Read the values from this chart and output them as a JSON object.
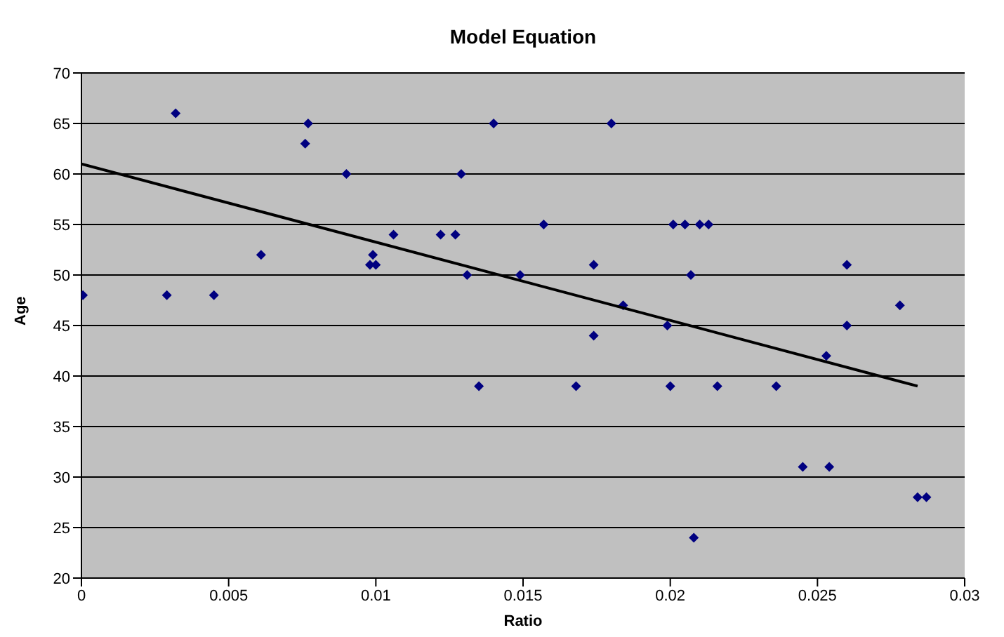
{
  "chart_data": {
    "type": "scatter",
    "title": "Model Equation",
    "xlabel": "Ratio",
    "ylabel": "Age",
    "series": [
      {
        "color": "#000080",
        "marker": "diamond",
        "x": [
          5e-05,
          0.0029,
          0.0032,
          0.0045,
          0.0061,
          0.0076,
          0.0077,
          0.009,
          0.0098,
          0.0099,
          0.01,
          0.0106,
          0.0122,
          0.0127,
          0.0129,
          0.0131,
          0.0135,
          0.014,
          0.0149,
          0.0157,
          0.0168,
          0.0174,
          0.0174,
          0.018,
          0.0184,
          0.0199,
          0.02,
          0.0201,
          0.0205,
          0.0207,
          0.0208,
          0.021,
          0.0213,
          0.0216,
          0.0236,
          0.0245,
          0.0253,
          0.0254,
          0.026,
          0.026,
          0.0278,
          0.0284,
          0.0287
        ],
        "values": [
          48,
          48,
          66,
          48,
          52,
          63,
          65,
          60,
          51,
          52,
          51,
          54,
          54,
          54,
          60,
          50,
          39,
          65,
          50,
          55,
          39,
          44,
          51,
          65,
          47,
          45,
          39,
          55,
          55,
          50,
          24,
          55,
          55,
          39,
          39,
          31,
          42,
          31,
          51,
          45,
          47,
          28,
          28
        ]
      },
      {
        "type": "line",
        "color": "#000000",
        "x": [
          0,
          0.0284
        ],
        "values": [
          61,
          39
        ]
      }
    ],
    "xlim": [
      0,
      0.03
    ],
    "xticks": [
      0,
      0.005,
      0.01,
      0.015,
      0.02,
      0.025,
      0.03
    ],
    "ylim": [
      20,
      70
    ],
    "yticks": [
      20,
      25,
      30,
      35,
      40,
      45,
      50,
      55,
      60,
      65,
      70
    ],
    "grid": "y"
  }
}
